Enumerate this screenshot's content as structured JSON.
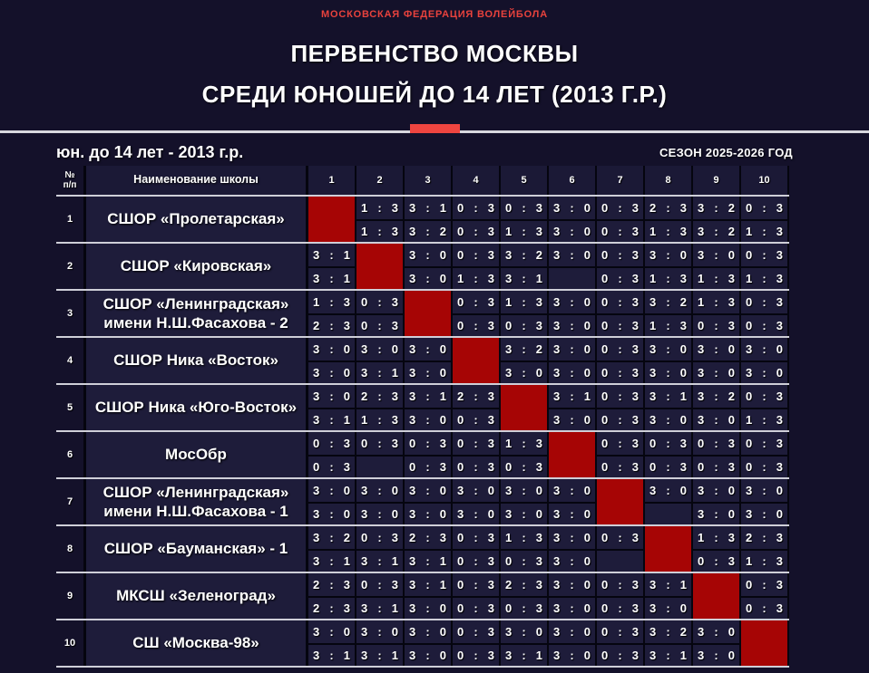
{
  "header": {
    "federation": "МОСКОВСКАЯ ФЕДЕРАЦИЯ ВОЛЕЙБОЛА",
    "title_line1": "ПЕРВЕНСТВО МОСКВЫ",
    "title_line2": "СРЕДИ ЮНОШЕЙ ДО 14 ЛЕТ (2013 Г.Р.)"
  },
  "subheader": {
    "age_group": "юн. до 14 лет - 2013 г.р.",
    "season": "СЕЗОН 2025-2026 ГОД"
  },
  "colors": {
    "accent_red": "#ef4540",
    "diagonal_red": "#a60505",
    "page_background": "#14112a",
    "cell_background": "#1e1c3a"
  },
  "table": {
    "num_header_line1": "№",
    "num_header_line2": "п/п",
    "name_header": "Наименование школы",
    "round_headers": [
      "1",
      "2",
      "3",
      "4",
      "5",
      "6",
      "7",
      "8",
      "9",
      "10"
    ],
    "rows": [
      {
        "num": "1",
        "name": "СШОР «Пролетарская»",
        "results": [
          null,
          [
            "1:3",
            "1:3"
          ],
          [
            "3:1",
            "3:2"
          ],
          [
            "0:3",
            "0:3"
          ],
          [
            "0:3",
            "1:3"
          ],
          [
            "3:0",
            "3:0"
          ],
          [
            "0:3",
            "0:3"
          ],
          [
            "2:3",
            "1:3"
          ],
          [
            "3:2",
            "3:2"
          ],
          [
            "0:3",
            "1:3"
          ]
        ]
      },
      {
        "num": "2",
        "name": "СШОР «Кировская»",
        "results": [
          [
            "3:1",
            "3:1"
          ],
          null,
          [
            "3:0",
            "3:0"
          ],
          [
            "0:3",
            "1:3"
          ],
          [
            "3:2",
            "3:1"
          ],
          [
            "3:0",
            ""
          ],
          [
            "0:3",
            "0:3"
          ],
          [
            "3:0",
            "1:3"
          ],
          [
            "3:0",
            "1:3"
          ],
          [
            "0:3",
            "1:3"
          ]
        ]
      },
      {
        "num": "3",
        "name": "СШОР «Ленинградская» имени Н.Ш.Фасахова - 2",
        "results": [
          [
            "1:3",
            "2:3"
          ],
          [
            "0:3",
            "0:3"
          ],
          null,
          [
            "0:3",
            "0:3"
          ],
          [
            "1:3",
            "0:3"
          ],
          [
            "3:0",
            "3:0"
          ],
          [
            "0:3",
            "0:3"
          ],
          [
            "3:2",
            "1:3"
          ],
          [
            "1:3",
            "0:3"
          ],
          [
            "0:3",
            "0:3"
          ]
        ]
      },
      {
        "num": "4",
        "name": "СШОР Ника «Восток»",
        "results": [
          [
            "3:0",
            "3:0"
          ],
          [
            "3:0",
            "3:1"
          ],
          [
            "3:0",
            "3:0"
          ],
          null,
          [
            "3:2",
            "3:0"
          ],
          [
            "3:0",
            "3:0"
          ],
          [
            "0:3",
            "0:3"
          ],
          [
            "3:0",
            "3:0"
          ],
          [
            "3:0",
            "3:0"
          ],
          [
            "3:0",
            "3:0"
          ]
        ]
      },
      {
        "num": "5",
        "name": "СШОР Ника «Юго-Восток»",
        "results": [
          [
            "3:0",
            "3:1"
          ],
          [
            "2:3",
            "1:3"
          ],
          [
            "3:1",
            "3:0"
          ],
          [
            "2:3",
            "0:3"
          ],
          null,
          [
            "3:1",
            "3:0"
          ],
          [
            "0:3",
            "0:3"
          ],
          [
            "3:1",
            "3:0"
          ],
          [
            "3:2",
            "3:0"
          ],
          [
            "0:3",
            "1:3"
          ]
        ]
      },
      {
        "num": "6",
        "name": "МосОбр",
        "results": [
          [
            "0:3",
            "0:3"
          ],
          [
            "0:3",
            ""
          ],
          [
            "0:3",
            "0:3"
          ],
          [
            "0:3",
            "0:3"
          ],
          [
            "1:3",
            "0:3"
          ],
          null,
          [
            "0:3",
            "0:3"
          ],
          [
            "0:3",
            "0:3"
          ],
          [
            "0:3",
            "0:3"
          ],
          [
            "0:3",
            "0:3"
          ]
        ]
      },
      {
        "num": "7",
        "name": "СШОР «Ленинградская» имени Н.Ш.Фасахова - 1",
        "results": [
          [
            "3:0",
            "3:0"
          ],
          [
            "3:0",
            "3:0"
          ],
          [
            "3:0",
            "3:0"
          ],
          [
            "3:0",
            "3:0"
          ],
          [
            "3:0",
            "3:0"
          ],
          [
            "3:0",
            "3:0"
          ],
          null,
          [
            "3:0",
            ""
          ],
          [
            "3:0",
            "3:0"
          ],
          [
            "3:0",
            "3:0"
          ]
        ]
      },
      {
        "num": "8",
        "name": "СШОР «Бауманская» - 1",
        "results": [
          [
            "3:2",
            "3:1"
          ],
          [
            "0:3",
            "3:1"
          ],
          [
            "2:3",
            "3:1"
          ],
          [
            "0:3",
            "0:3"
          ],
          [
            "1:3",
            "0:3"
          ],
          [
            "3:0",
            "3:0"
          ],
          [
            "0:3",
            ""
          ],
          null,
          [
            "1:3",
            "0:3"
          ],
          [
            "2:3",
            "1:3"
          ]
        ]
      },
      {
        "num": "9",
        "name": "МКСШ «Зеленоград»",
        "results": [
          [
            "2:3",
            "2:3"
          ],
          [
            "0:3",
            "3:1"
          ],
          [
            "3:1",
            "3:0"
          ],
          [
            "0:3",
            "0:3"
          ],
          [
            "2:3",
            "0:3"
          ],
          [
            "3:0",
            "3:0"
          ],
          [
            "0:3",
            "0:3"
          ],
          [
            "3:1",
            "3:0"
          ],
          null,
          [
            "0:3",
            "0:3"
          ]
        ]
      },
      {
        "num": "10",
        "name": "СШ «Москва-98»",
        "results": [
          [
            "3:0",
            "3:1"
          ],
          [
            "3:0",
            "3:1"
          ],
          [
            "3:0",
            "3:0"
          ],
          [
            "0:3",
            "0:3"
          ],
          [
            "3:0",
            "3:1"
          ],
          [
            "3:0",
            "3:0"
          ],
          [
            "0:3",
            "0:3"
          ],
          [
            "3:2",
            "3:1"
          ],
          [
            "3:0",
            "3:0"
          ],
          null
        ]
      }
    ]
  }
}
